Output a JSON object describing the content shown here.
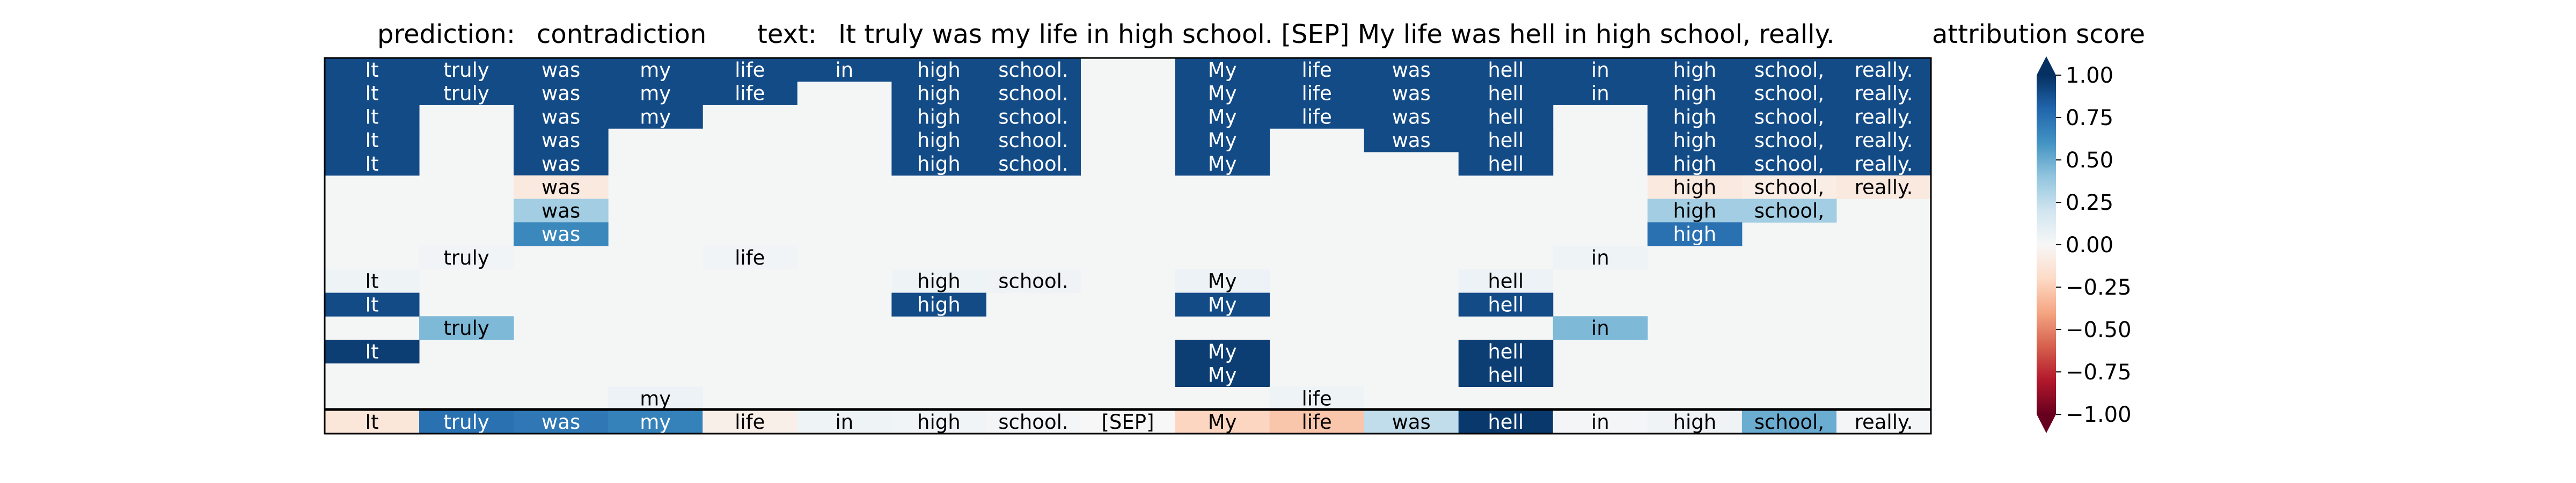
{
  "chart_data": {
    "type": "heatmap",
    "title_parts": {
      "prediction_label": "prediction:",
      "prediction_value": "contradiction",
      "text_label": "text:",
      "text_value": "It truly was my life in high school. [SEP] My life was hell in high school, really.",
      "colorbar_title": "attribution score"
    },
    "tokens": [
      "It",
      "truly",
      "was",
      "my",
      "life",
      "in",
      "high",
      "school.",
      "[SEP]",
      "My",
      "life",
      "was",
      "hell",
      "in",
      "high",
      "school,",
      "really."
    ],
    "rows": [
      [
        0.9,
        0.9,
        0.9,
        0.9,
        0.9,
        0.9,
        0.9,
        0.9,
        0,
        0.9,
        0.9,
        0.9,
        0.9,
        0.9,
        0.9,
        0.9,
        0.9
      ],
      [
        0.9,
        0.9,
        0.9,
        0.9,
        0.9,
        0,
        0.9,
        0.9,
        0,
        0.9,
        0.9,
        0.9,
        0.9,
        0.9,
        0.9,
        0.9,
        0.9
      ],
      [
        0.9,
        0,
        0.9,
        0.9,
        0,
        0,
        0.9,
        0.9,
        0,
        0.9,
        0.9,
        0.9,
        0.9,
        0,
        0.9,
        0.9,
        0.9
      ],
      [
        0.9,
        0,
        0.9,
        0,
        0,
        0,
        0.9,
        0.9,
        0,
        0.9,
        0,
        0.9,
        0.9,
        0,
        0.9,
        0.9,
        0.9
      ],
      [
        0.9,
        0,
        0.9,
        0,
        0,
        0,
        0.9,
        0.9,
        0,
        0.9,
        0,
        0,
        0.9,
        0,
        0.9,
        0.9,
        0.9
      ],
      [
        0,
        0,
        -0.1,
        0,
        0,
        0,
        0,
        0,
        0,
        0,
        0,
        0,
        0,
        0,
        -0.1,
        -0.07,
        -0.1
      ],
      [
        0,
        0,
        0.35,
        0,
        0,
        0,
        0,
        0,
        0,
        0,
        0,
        0,
        0,
        0,
        0.35,
        0.35,
        0
      ],
      [
        0,
        0,
        0.65,
        0,
        0,
        0,
        0,
        0,
        0,
        0,
        0,
        0,
        0,
        0,
        0.75,
        0,
        0
      ],
      [
        0,
        0.03,
        0,
        0,
        0.03,
        0,
        0,
        0,
        0,
        0,
        0,
        0,
        0,
        0.05,
        0,
        0,
        0
      ],
      [
        0.05,
        0,
        0,
        0,
        0,
        0,
        0.05,
        0.04,
        0,
        0.06,
        0,
        0,
        0.06,
        0,
        0,
        0,
        0
      ],
      [
        0.9,
        0,
        0,
        0,
        0,
        0,
        0.9,
        0,
        0,
        0.9,
        0,
        0,
        0.9,
        0,
        0,
        0,
        0
      ],
      [
        0,
        0.45,
        0,
        0,
        0,
        0,
        0,
        0,
        0,
        0,
        0,
        0,
        0,
        0.45,
        0,
        0,
        0
      ],
      [
        0.95,
        0,
        0,
        0,
        0,
        0,
        0,
        0,
        0,
        0.95,
        0,
        0,
        0.95,
        0,
        0,
        0,
        0
      ],
      [
        0,
        0,
        0,
        0,
        0,
        0,
        0,
        0,
        0,
        0.95,
        0,
        0,
        0.95,
        0,
        0,
        0,
        0
      ],
      [
        0,
        0,
        0,
        0.06,
        0,
        0,
        0,
        0,
        0,
        0,
        0.05,
        0,
        0,
        0,
        0,
        0,
        0
      ]
    ],
    "summary_row": [
      -0.12,
      0.75,
      0.72,
      0.68,
      -0.06,
      0.05,
      0.03,
      0.02,
      0,
      -0.22,
      -0.28,
      0.25,
      0.97,
      0.02,
      0.04,
      0.5,
      0.02
    ],
    "colorbar": {
      "colormap": "RdBu",
      "vmin": -1.0,
      "vmax": 1.0,
      "ticks": [
        "1.00",
        "0.75",
        "0.50",
        "0.25",
        "0.00",
        "−0.25",
        "−0.50",
        "−0.75",
        "−1.00"
      ],
      "tick_values": [
        1.0,
        0.75,
        0.5,
        0.25,
        0.0,
        -0.25,
        -0.5,
        -0.75,
        -1.0
      ],
      "extend": "both"
    },
    "grid": false,
    "legend": "colorbar-right"
  }
}
